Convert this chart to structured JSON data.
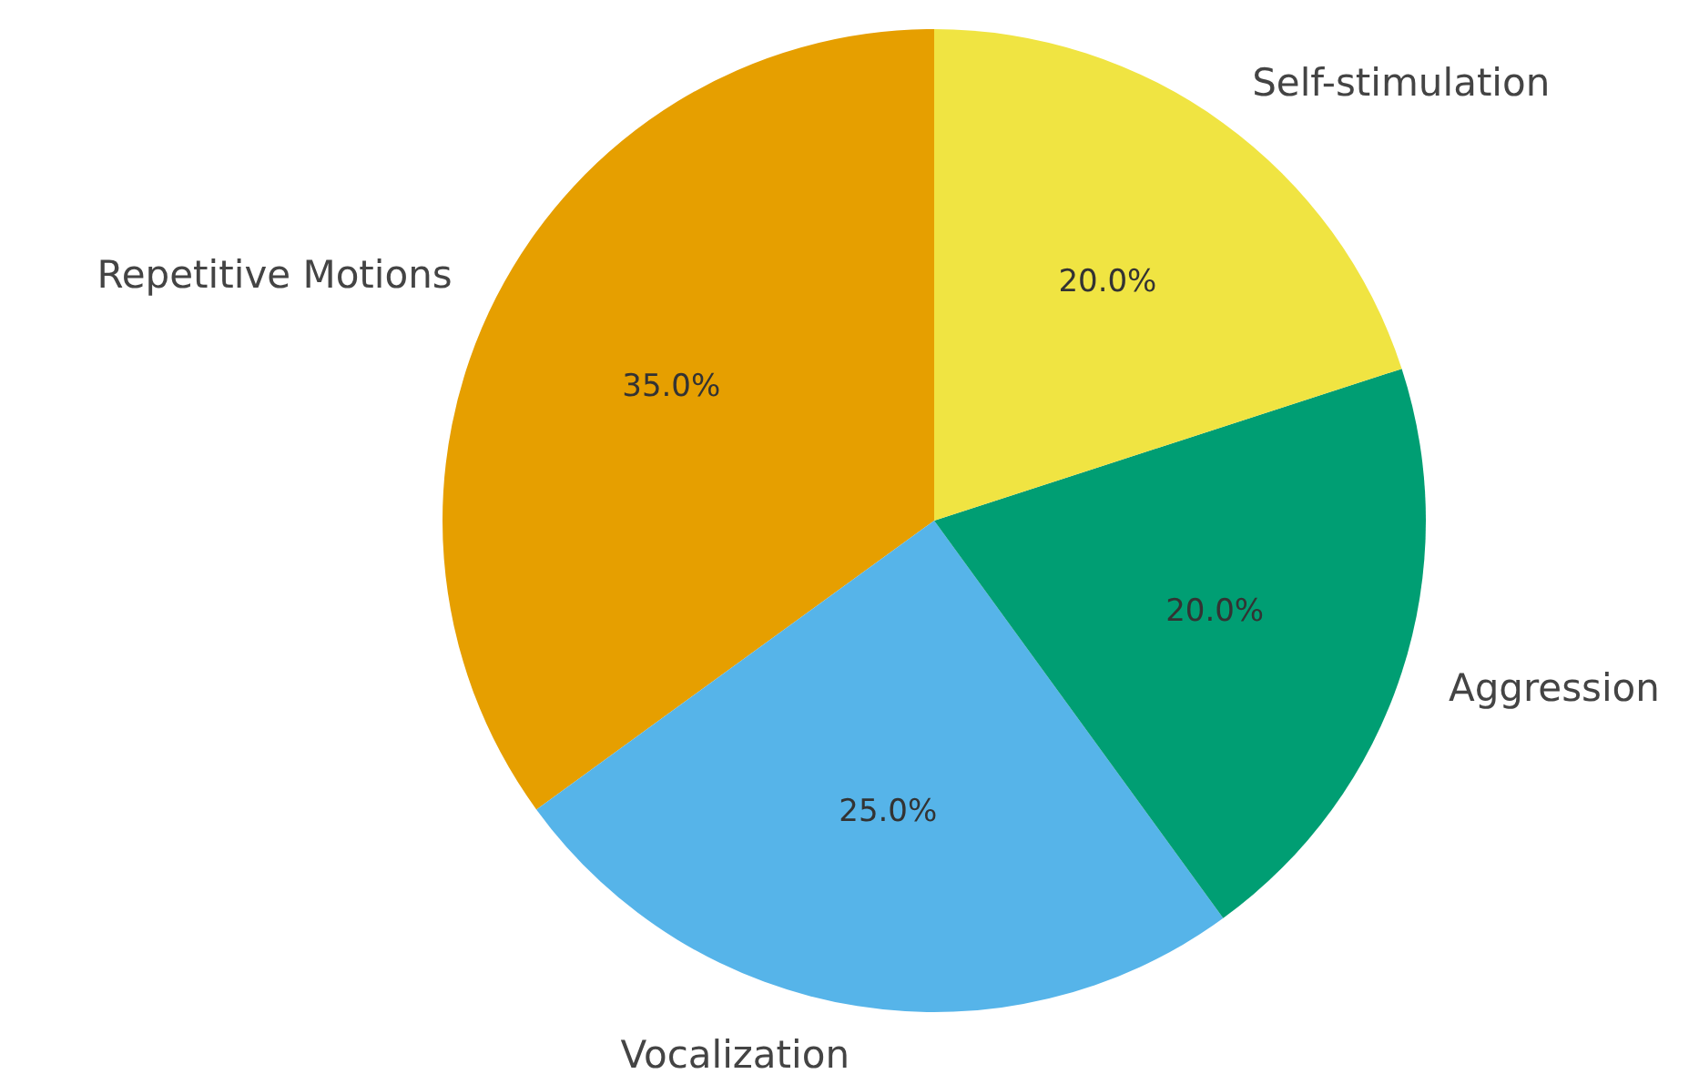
{
  "chart_data": {
    "type": "pie",
    "categories": [
      "Repetitive Motions",
      "Vocalization",
      "Aggression",
      "Self-stimulation"
    ],
    "values": [
      35,
      25,
      20,
      20
    ],
    "colors": [
      "#e69f00",
      "#56b4e9",
      "#009e73",
      "#f0e442"
    ],
    "value_labels": [
      "35.0%",
      "25.0%",
      "20.0%",
      "20.0%"
    ],
    "legend": false
  }
}
